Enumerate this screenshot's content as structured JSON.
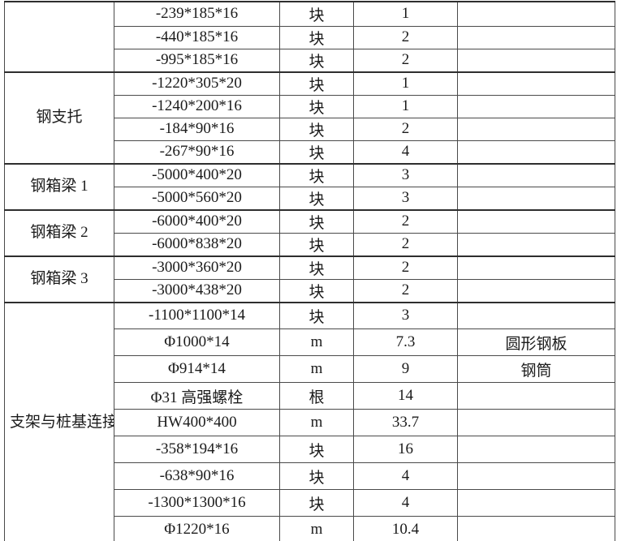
{
  "colors": {
    "background": "#ffffff",
    "border": "#4a4a4a",
    "section_border": "#2e2e2e",
    "text": "#1b1b1b"
  },
  "table": {
    "sections": [
      {
        "category": "",
        "rows": [
          {
            "spec": "-239*185*16",
            "unit": "块",
            "qty": "1",
            "note": ""
          },
          {
            "spec": "-440*185*16",
            "unit": "块",
            "qty": "2",
            "note": ""
          },
          {
            "spec": "-995*185*16",
            "unit": "块",
            "qty": "2",
            "note": ""
          }
        ]
      },
      {
        "category": "钢支托",
        "rows": [
          {
            "spec": "-1220*305*20",
            "unit": "块",
            "qty": "1",
            "note": ""
          },
          {
            "spec": "-1240*200*16",
            "unit": "块",
            "qty": "1",
            "note": ""
          },
          {
            "spec": "-184*90*16",
            "unit": "块",
            "qty": "2",
            "note": ""
          },
          {
            "spec": "-267*90*16",
            "unit": "块",
            "qty": "4",
            "note": ""
          }
        ]
      },
      {
        "category": "钢箱梁 1",
        "rows": [
          {
            "spec": "-5000*400*20",
            "unit": "块",
            "qty": "3",
            "note": ""
          },
          {
            "spec": "-5000*560*20",
            "unit": "块",
            "qty": "3",
            "note": ""
          }
        ]
      },
      {
        "category": "钢箱梁 2",
        "rows": [
          {
            "spec": "-6000*400*20",
            "unit": "块",
            "qty": "2",
            "note": ""
          },
          {
            "spec": "-6000*838*20",
            "unit": "块",
            "qty": "2",
            "note": ""
          }
        ]
      },
      {
        "category": "钢箱梁 3",
        "rows": [
          {
            "spec": "-3000*360*20",
            "unit": "块",
            "qty": "2",
            "note": ""
          },
          {
            "spec": "-3000*438*20",
            "unit": "块",
            "qty": "2",
            "note": ""
          }
        ]
      },
      {
        "category": "支架与桩基连接",
        "rows": [
          {
            "spec": "-1100*1100*14",
            "unit": "块",
            "qty": "3",
            "note": ""
          },
          {
            "spec": "Φ1000*14",
            "unit": "m",
            "qty": "7.3",
            "note": "圆形钢板"
          },
          {
            "spec": "Φ914*14",
            "unit": "m",
            "qty": "9",
            "note": "钢筒"
          },
          {
            "spec": "Φ31 高强螺栓",
            "unit": "根",
            "qty": "14",
            "note": ""
          },
          {
            "spec": "HW400*400",
            "unit": "m",
            "qty": "33.7",
            "note": ""
          },
          {
            "spec": "-358*194*16",
            "unit": "块",
            "qty": "16",
            "note": ""
          },
          {
            "spec": "-638*90*16",
            "unit": "块",
            "qty": "4",
            "note": ""
          },
          {
            "spec": "-1300*1300*16",
            "unit": "块",
            "qty": "4",
            "note": ""
          },
          {
            "spec": "Φ1220*16",
            "unit": "m",
            "qty": "10.4",
            "note": ""
          }
        ]
      }
    ]
  }
}
